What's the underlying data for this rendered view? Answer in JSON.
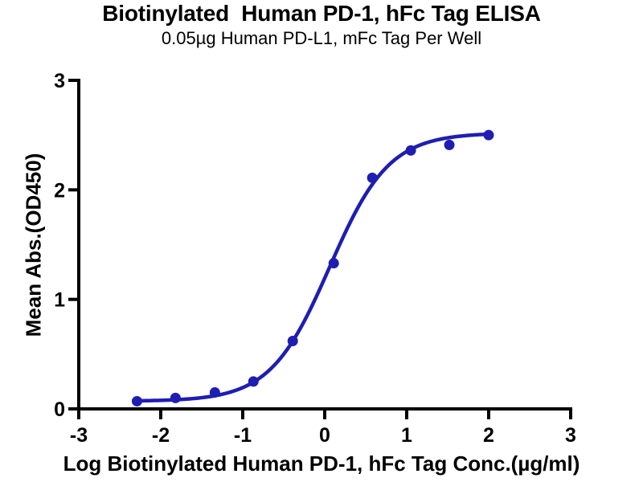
{
  "chart": {
    "title": "Biotinylated  Human PD-1, hFc Tag ELISA",
    "subtitle": "0.05µg Human PD-L1, mFc Tag Per Well",
    "xlabel": "Log Biotinylated Human PD-1, hFc Tag Conc.(µg/ml)",
    "ylabel": "Mean Abs.(OD450)"
  },
  "chart_data": {
    "type": "scatter",
    "curve": "4PL sigmoid dose-response fit",
    "title": "Biotinylated  Human PD-1, hFc Tag ELISA",
    "subtitle": "0.05µg Human PD-L1, mFc Tag Per Well",
    "xlabel": "Log Biotinylated Human PD-1, hFc Tag Conc.(µg/ml)",
    "ylabel": "Mean Abs.(OD450)",
    "x": [
      -2.29,
      -1.82,
      -1.34,
      -0.87,
      -0.39,
      0.11,
      0.58,
      1.05,
      1.52,
      2.0
    ],
    "y": [
      0.07,
      0.1,
      0.15,
      0.25,
      0.62,
      1.33,
      2.11,
      2.36,
      2.41,
      2.5
    ],
    "fit": {
      "bottom": 0.07,
      "top": 2.52,
      "log_ec50": 0.06,
      "hill": 1.2
    },
    "xlim": [
      -3,
      3
    ],
    "ylim": [
      0,
      3
    ],
    "x_ticks": [
      "-3",
      "-2",
      "-1",
      "0",
      "1",
      "2",
      "3"
    ],
    "x_tick_values": [
      -3,
      -2,
      -1,
      0,
      1,
      2,
      3
    ],
    "y_ticks": [
      "0",
      "1",
      "2",
      "3"
    ],
    "y_tick_values": [
      0,
      1,
      2,
      3
    ],
    "grid": false,
    "legend": false,
    "colors": {
      "series": "#1e1eb2",
      "axis": "#000000",
      "background": "#ffffff"
    },
    "marker_radius": 6.5,
    "curve_width": 4.5,
    "axis_width": 4
  }
}
